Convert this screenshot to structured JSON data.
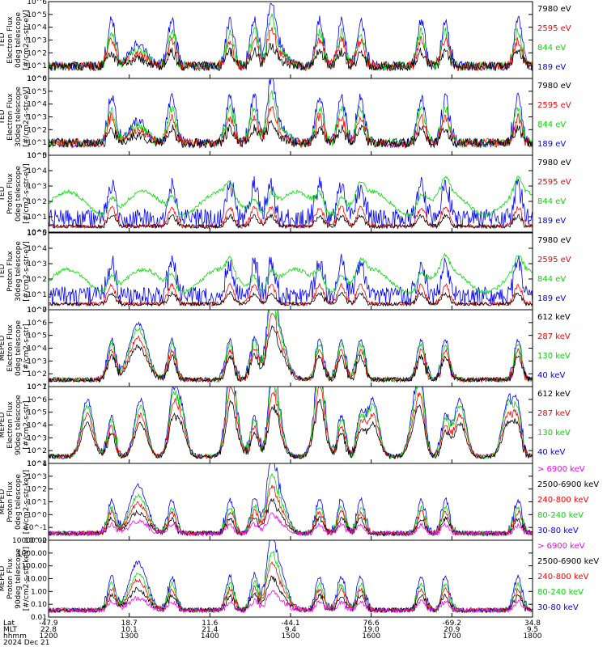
{
  "colors": {
    "blue": "#0000ff",
    "red": "#ff0000",
    "green": "#00dd00",
    "black": "#000000",
    "magenta": "#ff00ff"
  },
  "chart_data": [
    {
      "type": "line",
      "ylabel": [
        "TED",
        "Electron Flux",
        "0deg telescope",
        "[#/cm2-s-str-eV]"
      ],
      "y_scale": "log",
      "ylim": [
        1,
        1000000
      ],
      "y_tick_labels": [
        "10^0",
        "10^1",
        "10^2",
        "10^3",
        "10^4",
        "10^5",
        "10^6"
      ],
      "series": [
        {
          "name": "7980 eV",
          "color": "black"
        },
        {
          "name": "2595 eV",
          "color": "red"
        },
        {
          "name": "844 eV",
          "color": "green"
        },
        {
          "name": "189 eV",
          "color": "blue"
        }
      ]
    },
    {
      "type": "line",
      "ylabel": [
        "TED",
        "Electron Flux",
        "30deg telescope",
        "[#/cm2-s-str-eV]"
      ],
      "y_scale": "log",
      "ylim": [
        1,
        1000000
      ],
      "y_tick_labels": [
        "10^0",
        "10^1",
        "10^2",
        "10^3",
        "10^4",
        "10^5",
        "10^6"
      ],
      "series": [
        {
          "name": "7980 eV",
          "color": "black"
        },
        {
          "name": "2595 eV",
          "color": "red"
        },
        {
          "name": "844 eV",
          "color": "green"
        },
        {
          "name": "189 eV",
          "color": "blue"
        }
      ]
    },
    {
      "type": "line",
      "ylabel": [
        "TED",
        "Proton Flux",
        "0deg telescope",
        "[#/cm2-s-str-eV]"
      ],
      "y_scale": "log",
      "ylim": [
        1,
        100000
      ],
      "y_tick_labels": [
        "10^0",
        "10^1",
        "10^2",
        "10^3",
        "10^4",
        "10^5"
      ],
      "series": [
        {
          "name": "7980 eV",
          "color": "black"
        },
        {
          "name": "2595 eV",
          "color": "red"
        },
        {
          "name": "844 eV",
          "color": "green"
        },
        {
          "name": "189 eV",
          "color": "blue"
        }
      ]
    },
    {
      "type": "line",
      "ylabel": [
        "TED",
        "Proton Flux",
        "30deg telescope",
        "[#/cm2-s-str-eV]"
      ],
      "y_scale": "log",
      "ylim": [
        1,
        100000
      ],
      "y_tick_labels": [
        "10^0",
        "10^1",
        "10^2",
        "10^3",
        "10^4",
        "10^5"
      ],
      "series": [
        {
          "name": "7980 eV",
          "color": "black"
        },
        {
          "name": "2595 eV",
          "color": "red"
        },
        {
          "name": "844 eV",
          "color": "green"
        },
        {
          "name": "189 eV",
          "color": "blue"
        }
      ]
    },
    {
      "type": "line",
      "ylabel": [
        "MEPED",
        "Electron Flux",
        "0deg telescope",
        "[#/cm2-s-str]"
      ],
      "y_scale": "log",
      "ylim": [
        10,
        10000000
      ],
      "y_tick_labels": [
        "10^1",
        "10^2",
        "10^3",
        "10^4",
        "10^5",
        "10^6",
        "10^7"
      ],
      "series": [
        {
          "name": "612 keV",
          "color": "black"
        },
        {
          "name": "287 keV",
          "color": "red"
        },
        {
          "name": "130 keV",
          "color": "green"
        },
        {
          "name": "40 keV",
          "color": "blue"
        }
      ]
    },
    {
      "type": "line",
      "ylabel": [
        "MEPED",
        "Electron Flux",
        "90deg telescope",
        "[#/cm2-s-str]"
      ],
      "y_scale": "log",
      "ylim": [
        10,
        10000000
      ],
      "y_tick_labels": [
        "10^1",
        "10^2",
        "10^3",
        "10^4",
        "10^5",
        "10^6",
        "10^7"
      ],
      "series": [
        {
          "name": "612 keV",
          "color": "black"
        },
        {
          "name": "287 keV",
          "color": "red"
        },
        {
          "name": "130 keV",
          "color": "green"
        },
        {
          "name": "40 keV",
          "color": "blue"
        }
      ]
    },
    {
      "type": "line",
      "ylabel": [
        "MEPED",
        "Proton Flux",
        "0deg telescope",
        "[#/cm2-s-str-keV]"
      ],
      "y_scale": "log",
      "ylim": [
        0.01,
        10000
      ],
      "y_tick_labels": [
        "10^-2",
        "10^-1",
        "10^0",
        "10^1",
        "10^2",
        "10^3",
        "10^4"
      ],
      "series": [
        {
          "name": "> 6900 keV",
          "color": "magenta"
        },
        {
          "name": "2500-6900 keV",
          "color": "black"
        },
        {
          "name": "240-800 keV",
          "color": "red"
        },
        {
          "name": "80-240 keV",
          "color": "green"
        },
        {
          "name": "30-80 keV",
          "color": "blue"
        }
      ]
    },
    {
      "type": "line",
      "ylabel": [
        "MEPED",
        "Proton Flux",
        "90deg telescope",
        "[#/cm2-s-str-keV]"
      ],
      "y_scale": "log",
      "ylim": [
        0.01,
        10000
      ],
      "y_tick_labels": [
        "0.01",
        "0.10",
        "1.00",
        "10.00",
        "100.00",
        "1000.00",
        "10000.00"
      ],
      "series": [
        {
          "name": "> 6900 keV",
          "color": "magenta"
        },
        {
          "name": "2500-6900 keV",
          "color": "black"
        },
        {
          "name": "240-800 keV",
          "color": "red"
        },
        {
          "name": "80-240 keV",
          "color": "green"
        },
        {
          "name": "30-80 keV",
          "color": "blue"
        }
      ]
    }
  ],
  "x_axis": {
    "row_labels": [
      "Lat",
      "MLT",
      "hhmm",
      "2024 Dec 21"
    ],
    "ticks": [
      {
        "lat": "-47.9",
        "mlt": "22.8",
        "hhmm": "1200"
      },
      {
        "lat": "18.7",
        "mlt": "10.1",
        "hhmm": "1300"
      },
      {
        "lat": "11.6",
        "mlt": "21.4",
        "hhmm": "1400"
      },
      {
        "lat": "-44.1",
        "mlt": "9.4",
        "hhmm": "1500"
      },
      {
        "lat": "76.6",
        "mlt": "19.0",
        "hhmm": "1600"
      },
      {
        "lat": "-69.2",
        "mlt": "20.9",
        "hhmm": "1700"
      },
      {
        "lat": "34.8",
        "mlt": "9.5",
        "hhmm": "1800"
      }
    ]
  }
}
